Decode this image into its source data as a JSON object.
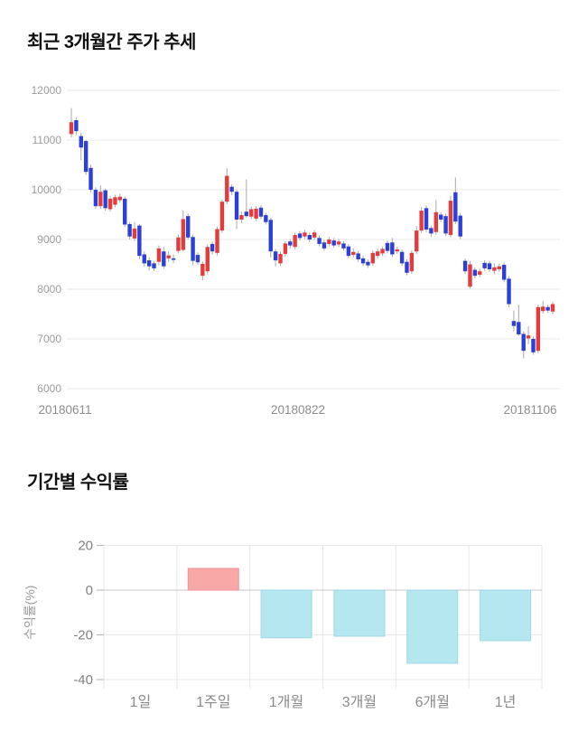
{
  "page": {
    "background": "#ffffff"
  },
  "chart_data": [
    {
      "type": "candlestick",
      "title": "최근 3개월간 주가 추세",
      "ylim": [
        6000,
        12000
      ],
      "yticks": [
        12000,
        11000,
        10000,
        9000,
        8000,
        7000,
        6000
      ],
      "xtick_labels": [
        "20180611",
        "20180822",
        "20181106"
      ],
      "grid": true,
      "legend": "none",
      "colors": {
        "up": "#e23c3c",
        "down": "#2c3fd6",
        "wick": "#a8a8a8",
        "grid": "#e9e9e9",
        "tick_text": "#9b9b9b",
        "xlabel_text": "#8c8c8c"
      },
      "candles_ohlc": [
        [
          11120,
          11640,
          11050,
          11360
        ],
        [
          11400,
          11460,
          11100,
          11180
        ],
        [
          11080,
          11150,
          10600,
          10850
        ],
        [
          10980,
          11000,
          10300,
          10360
        ],
        [
          10440,
          10500,
          9940,
          10000
        ],
        [
          10000,
          10050,
          9620,
          9670
        ],
        [
          9670,
          10090,
          9620,
          9960
        ],
        [
          9990,
          10020,
          9580,
          9630
        ],
        [
          9610,
          9870,
          9560,
          9820
        ],
        [
          9700,
          9900,
          9650,
          9850
        ],
        [
          9790,
          9920,
          9740,
          9860
        ],
        [
          9820,
          9870,
          9250,
          9300
        ],
        [
          9310,
          9350,
          9000,
          9060
        ],
        [
          9020,
          9350,
          8970,
          9220
        ],
        [
          9280,
          9310,
          8600,
          8670
        ],
        [
          8700,
          8760,
          8450,
          8520
        ],
        [
          8580,
          8640,
          8380,
          8460
        ],
        [
          8520,
          8570,
          8360,
          8420
        ],
        [
          8550,
          8880,
          8480,
          8820
        ],
        [
          8760,
          8850,
          8410,
          8460
        ],
        [
          8620,
          8760,
          8550,
          8680
        ],
        [
          8620,
          8700,
          8520,
          8590
        ],
        [
          8770,
          9100,
          8720,
          9040
        ],
        [
          8790,
          9580,
          8760,
          9410
        ],
        [
          9470,
          9520,
          9000,
          9040
        ],
        [
          9050,
          9100,
          8480,
          8570
        ],
        [
          8690,
          8740,
          8490,
          8540
        ],
        [
          8270,
          8560,
          8180,
          8510
        ],
        [
          8360,
          8900,
          8300,
          8850
        ],
        [
          8910,
          8960,
          8700,
          8760
        ],
        [
          8730,
          9260,
          8680,
          9210
        ],
        [
          9180,
          9800,
          9130,
          9760
        ],
        [
          9760,
          10430,
          9710,
          10280
        ],
        [
          10060,
          10110,
          9890,
          9960
        ],
        [
          9960,
          10010,
          9210,
          9400
        ],
        [
          9400,
          9560,
          9330,
          9490
        ],
        [
          9560,
          10210,
          9440,
          9470
        ],
        [
          9460,
          9660,
          9410,
          9610
        ],
        [
          9420,
          9670,
          9370,
          9620
        ],
        [
          9640,
          9690,
          9410,
          9460
        ],
        [
          9490,
          9540,
          9300,
          9350
        ],
        [
          9395,
          9440,
          8640,
          8760
        ],
        [
          8760,
          8810,
          8460,
          8580
        ],
        [
          8520,
          8760,
          8470,
          8710
        ],
        [
          8710,
          8970,
          8660,
          8920
        ],
        [
          8960,
          9010,
          8820,
          8880
        ],
        [
          8850,
          9140,
          8800,
          9090
        ],
        [
          9120,
          9170,
          8980,
          9030
        ],
        [
          9060,
          9190,
          9010,
          9140
        ],
        [
          9090,
          9140,
          8950,
          9000
        ],
        [
          9040,
          9190,
          8990,
          9140
        ],
        [
          9030,
          9080,
          8860,
          8910
        ],
        [
          8940,
          8990,
          8770,
          8820
        ],
        [
          8910,
          9050,
          8860,
          9000
        ],
        [
          8980,
          9030,
          8830,
          8880
        ],
        [
          8900,
          9010,
          8850,
          8960
        ],
        [
          8920,
          8970,
          8770,
          8820
        ],
        [
          8860,
          8910,
          8620,
          8670
        ],
        [
          8690,
          8820,
          8640,
          8750
        ],
        [
          8720,
          8770,
          8550,
          8600
        ],
        [
          8620,
          8670,
          8470,
          8520
        ],
        [
          8550,
          8600,
          8430,
          8480
        ],
        [
          8520,
          8780,
          8470,
          8730
        ],
        [
          8670,
          8810,
          8620,
          8760
        ],
        [
          8720,
          8860,
          8670,
          8810
        ],
        [
          8930,
          8980,
          8720,
          8770
        ],
        [
          8940,
          9030,
          8650,
          8700
        ],
        [
          8760,
          8850,
          8710,
          8800
        ],
        [
          8750,
          8800,
          8470,
          8520
        ],
        [
          8550,
          8600,
          8280,
          8330
        ],
        [
          8360,
          8780,
          8310,
          8730
        ],
        [
          8760,
          9270,
          8710,
          9180
        ],
        [
          9180,
          9650,
          9130,
          9580
        ],
        [
          9630,
          9680,
          9150,
          9200
        ],
        [
          9230,
          9280,
          9050,
          9120
        ],
        [
          9150,
          9790,
          9100,
          9550
        ],
        [
          9500,
          9550,
          9350,
          9400
        ],
        [
          9470,
          9520,
          9070,
          9120
        ],
        [
          9090,
          9880,
          9040,
          9780
        ],
        [
          9950,
          10250,
          9310,
          9360
        ],
        [
          9480,
          9530,
          9010,
          9060
        ],
        [
          8570,
          8620,
          8310,
          8360
        ],
        [
          8050,
          8570,
          8010,
          8500
        ],
        [
          8390,
          8440,
          8220,
          8270
        ],
        [
          8290,
          8410,
          8240,
          8360
        ],
        [
          8530,
          8580,
          8370,
          8420
        ],
        [
          8520,
          8570,
          8350,
          8400
        ],
        [
          8370,
          8520,
          8300,
          8440
        ],
        [
          8400,
          8510,
          8350,
          8460
        ],
        [
          8490,
          8540,
          8140,
          8190
        ],
        [
          8210,
          8260,
          7640,
          7700
        ],
        [
          7360,
          7570,
          7150,
          7260
        ],
        [
          7340,
          7690,
          7060,
          7090
        ],
        [
          7100,
          7150,
          6610,
          6760
        ],
        [
          7010,
          7250,
          6890,
          7070
        ],
        [
          7000,
          7050,
          6680,
          6730
        ],
        [
          6760,
          7690,
          6710,
          7640
        ],
        [
          7560,
          7760,
          7510,
          7650
        ],
        [
          7640,
          7690,
          7520,
          7570
        ],
        [
          7550,
          7750,
          7500,
          7700
        ]
      ]
    },
    {
      "type": "bar",
      "title": "기간별 수익률",
      "ylabel": "수익률(%)",
      "categories": [
        "1일",
        "1주일",
        "1개월",
        "3개월",
        "6개월",
        "1년"
      ],
      "values": [
        0,
        9.7,
        -21.3,
        -20.6,
        -32.7,
        -22.6
      ],
      "ylim": [
        -40,
        20
      ],
      "yticks": [
        20,
        0,
        -20,
        -40
      ],
      "grid": true,
      "legend": "none",
      "colors": {
        "positive_fill": "#f9a8a8",
        "positive_stroke": "#f19298",
        "negative_fill": "#b4e7f0",
        "negative_stroke": "#9ed7e3",
        "grid": "#e7e7e7",
        "zero_line": "#c9c9c9",
        "tick_text": "#808080",
        "category_text": "#8a8a8a",
        "axis_label_text": "#9a9a9a"
      }
    }
  ]
}
